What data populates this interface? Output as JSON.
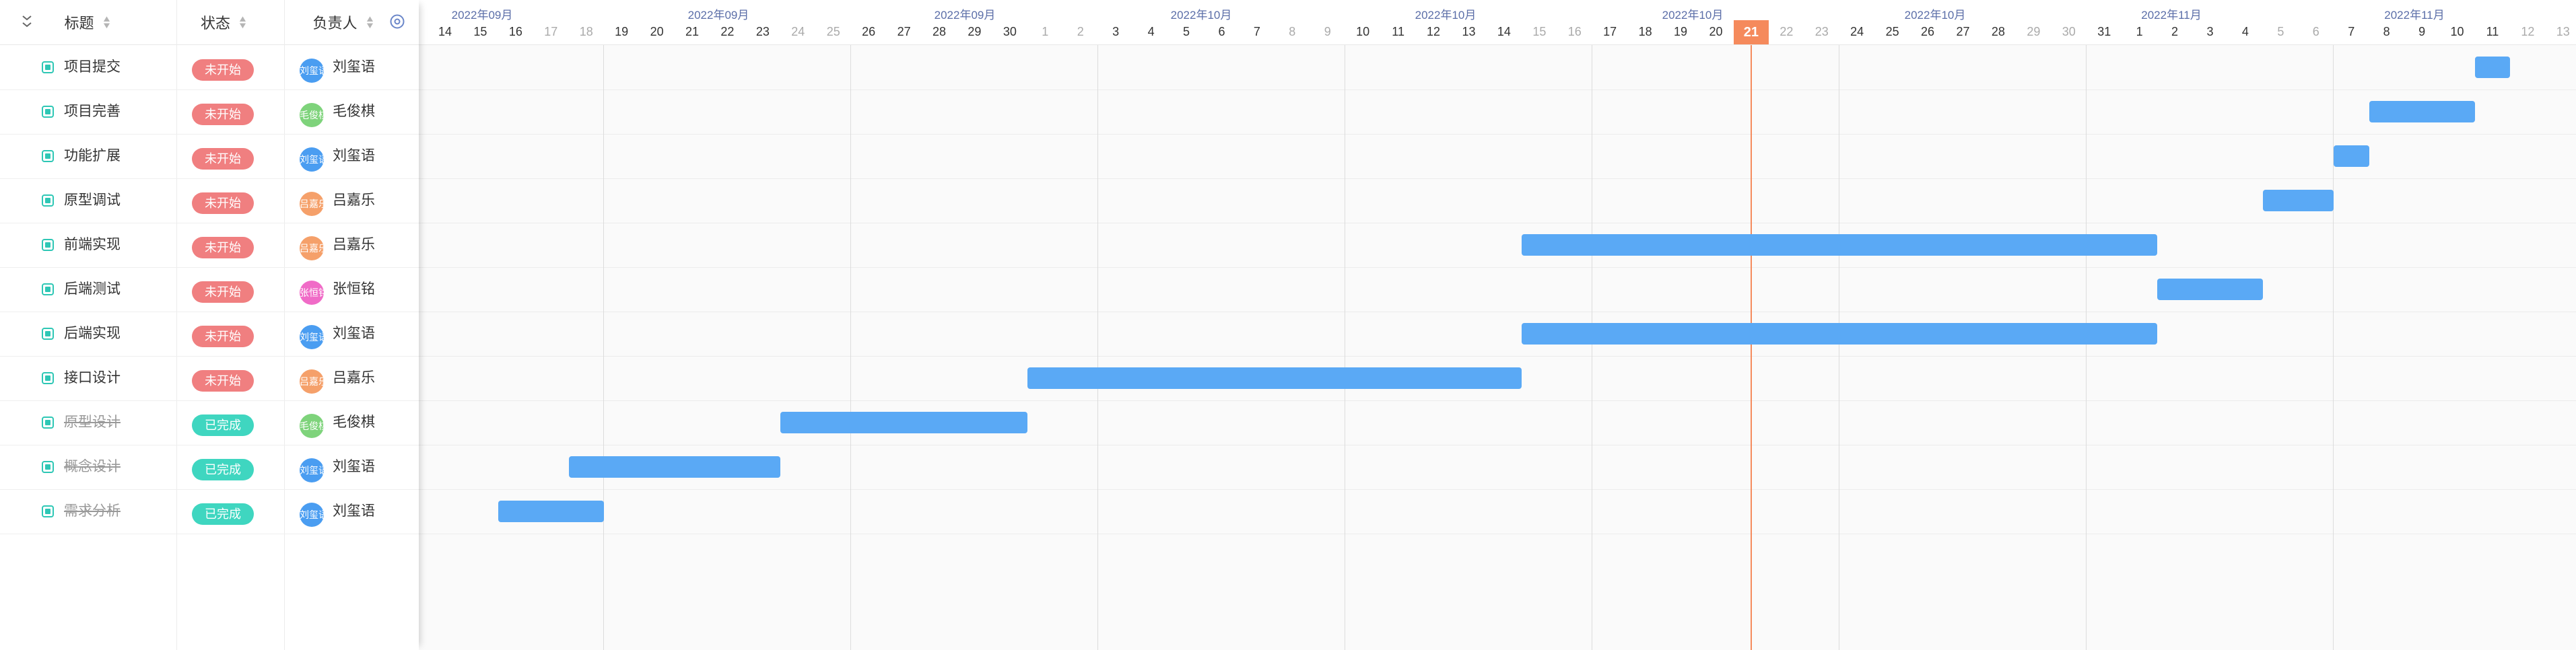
{
  "header": {
    "col_title": "标题",
    "col_status": "状态",
    "col_owner": "负责人"
  },
  "icons": {
    "collapse": "collapse-all-icon",
    "sort": "sort-icon",
    "settings": "settings-icon",
    "task": "task-checkbox-icon"
  },
  "colors": {
    "status_todo": "#f07f80",
    "status_done": "#3fd6c0",
    "bar": "#5aa9f5",
    "today": "#f58a5c"
  },
  "tasks": [
    {
      "title": "项目提交",
      "status": "未开始",
      "done": false,
      "avatar_text": "刘玺语",
      "avatar_color": "#4a9df1",
      "owner": "刘玺语",
      "start": "2022-11-11",
      "end": "2022-11-11"
    },
    {
      "title": "项目完善",
      "status": "未开始",
      "done": false,
      "avatar_text": "毛俊棋",
      "avatar_color": "#7ed37b",
      "owner": "毛俊棋",
      "start": "2022-11-08",
      "end": "2022-11-10"
    },
    {
      "title": "功能扩展",
      "status": "未开始",
      "done": false,
      "avatar_text": "刘玺语",
      "avatar_color": "#4a9df1",
      "owner": "刘玺语",
      "start": "2022-11-07",
      "end": "2022-11-07"
    },
    {
      "title": "原型调试",
      "status": "未开始",
      "done": false,
      "avatar_text": "吕嘉乐",
      "avatar_color": "#f5a06a",
      "owner": "吕嘉乐",
      "start": "2022-11-05",
      "end": "2022-11-06"
    },
    {
      "title": "前端实现",
      "status": "未开始",
      "done": false,
      "avatar_text": "吕嘉乐",
      "avatar_color": "#f5a06a",
      "owner": "吕嘉乐",
      "start": "2022-10-15",
      "end": "2022-11-01"
    },
    {
      "title": "后端测试",
      "status": "未开始",
      "done": false,
      "avatar_text": "张恒铭",
      "avatar_color": "#f06bc7",
      "owner": "张恒铭",
      "start": "2022-11-02",
      "end": "2022-11-04"
    },
    {
      "title": "后端实现",
      "status": "未开始",
      "done": false,
      "avatar_text": "刘玺语",
      "avatar_color": "#4a9df1",
      "owner": "刘玺语",
      "start": "2022-10-15",
      "end": "2022-11-01"
    },
    {
      "title": "接口设计",
      "status": "未开始",
      "done": false,
      "avatar_text": "吕嘉乐",
      "avatar_color": "#f5a06a",
      "owner": "吕嘉乐",
      "start": "2022-10-01",
      "end": "2022-10-14"
    },
    {
      "title": "原型设计",
      "status": "已完成",
      "done": true,
      "avatar_text": "毛俊棋",
      "avatar_color": "#7ed37b",
      "owner": "毛俊棋",
      "start": "2022-09-24",
      "end": "2022-09-30"
    },
    {
      "title": "概念设计",
      "status": "已完成",
      "done": true,
      "avatar_text": "刘玺语",
      "avatar_color": "#4a9df1",
      "owner": "刘玺语",
      "start": "2022-09-18",
      "end": "2022-09-23"
    },
    {
      "title": "需求分析",
      "status": "已完成",
      "done": true,
      "avatar_text": "刘玺语",
      "avatar_color": "#4a9df1",
      "owner": "刘玺语",
      "start": "2022-09-16",
      "end": "2022-09-18"
    }
  ],
  "timeline": {
    "start_date": "2022-09-14",
    "today": "2022-10-21",
    "months": [
      "2022年09月",
      "2022年09月",
      "2022年09月",
      "2022年10月",
      "2022年10月",
      "2022年10月",
      "2022年10月",
      "2022年11月",
      "2022年11月"
    ],
    "days": [
      "14",
      "15",
      "16",
      "17",
      "18",
      "19",
      "20",
      "21",
      "22",
      "23",
      "24",
      "25",
      "26",
      "27",
      "28",
      "29",
      "30",
      "1",
      "2",
      "3",
      "4",
      "5",
      "6",
      "7",
      "8",
      "9",
      "10",
      "11",
      "12",
      "13",
      "14",
      "15",
      "16",
      "17",
      "18",
      "19",
      "20",
      "21",
      "22",
      "23",
      "24",
      "25",
      "26",
      "27",
      "28",
      "29",
      "30",
      "31",
      "1",
      "2",
      "3",
      "4",
      "5",
      "6",
      "7",
      "8",
      "9",
      "10",
      "11",
      "12",
      "13"
    ],
    "weekend": [
      false,
      false,
      false,
      true,
      true,
      false,
      false,
      false,
      false,
      false,
      true,
      true,
      false,
      false,
      false,
      false,
      false,
      true,
      true,
      false,
      false,
      false,
      false,
      false,
      true,
      true,
      false,
      false,
      false,
      false,
      false,
      true,
      true,
      false,
      false,
      false,
      false,
      false,
      true,
      true,
      false,
      false,
      false,
      false,
      false,
      true,
      true,
      false,
      false,
      false,
      false,
      false,
      true,
      true,
      false,
      false,
      false,
      false,
      false,
      true,
      true
    ]
  }
}
